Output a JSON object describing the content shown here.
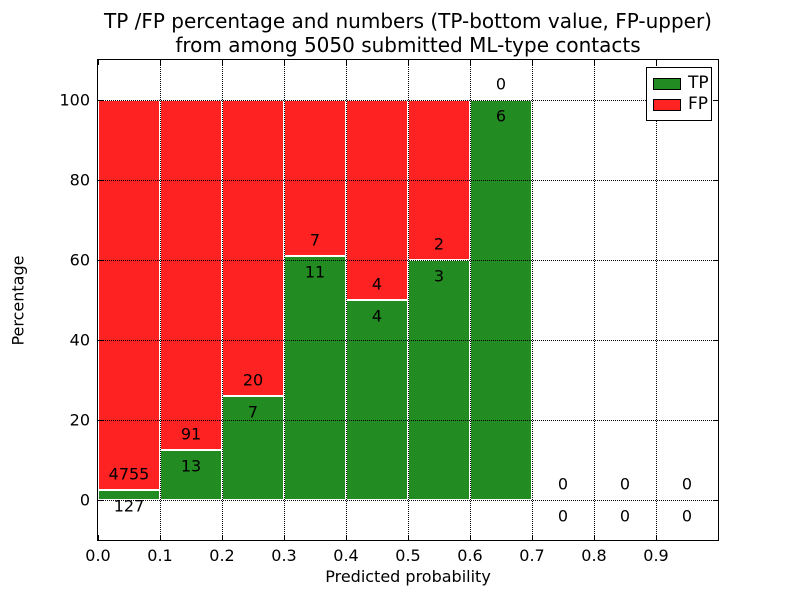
{
  "title": {
    "line1": "TP /FP percentage and numbers (TP-bottom value, FP-upper)",
    "line2": "from among 5050 submitted ML-type contacts"
  },
  "legend": {
    "items": [
      {
        "id": "tp",
        "label": "TP",
        "color": "#228b22"
      },
      {
        "id": "fp",
        "label": "FP",
        "color": "#ff2222"
      }
    ]
  },
  "chart_data": {
    "type": "bar",
    "stacked": true,
    "title": "TP /FP percentage and numbers (TP-bottom value, FP-upper) from among 5050 submitted ML-type contacts",
    "xlabel": "Predicted probability",
    "ylabel": "Percentage",
    "xlim": [
      0.0,
      1.0
    ],
    "ylim": [
      -10,
      110
    ],
    "grid": true,
    "legend_position": "upper right",
    "x_ticks": [
      {
        "v": 0.0,
        "label": "0.0"
      },
      {
        "v": 0.1,
        "label": "0.1"
      },
      {
        "v": 0.2,
        "label": "0.2"
      },
      {
        "v": 0.3,
        "label": "0.3"
      },
      {
        "v": 0.4,
        "label": "0.4"
      },
      {
        "v": 0.5,
        "label": "0.5"
      },
      {
        "v": 0.6,
        "label": "0.6"
      },
      {
        "v": 0.7,
        "label": "0.7"
      },
      {
        "v": 0.8,
        "label": "0.8"
      },
      {
        "v": 0.9,
        "label": "0.9"
      }
    ],
    "y_ticks": [
      {
        "v": 0,
        "label": "0"
      },
      {
        "v": 20,
        "label": "20"
      },
      {
        "v": 40,
        "label": "40"
      },
      {
        "v": 60,
        "label": "60"
      },
      {
        "v": 80,
        "label": "80"
      },
      {
        "v": 100,
        "label": "100"
      }
    ],
    "colors": {
      "tp": "#228b22",
      "fp": "#ff2222"
    },
    "bins": [
      {
        "range": [
          0.0,
          0.1
        ],
        "tp_count": 127,
        "fp_count": 4755,
        "tp_pct": 2.6,
        "fp_pct": 97.4
      },
      {
        "range": [
          0.1,
          0.2
        ],
        "tp_count": 13,
        "fp_count": 91,
        "tp_pct": 12.5,
        "fp_pct": 87.5
      },
      {
        "range": [
          0.2,
          0.3
        ],
        "tp_count": 7,
        "fp_count": 20,
        "tp_pct": 25.9,
        "fp_pct": 74.1
      },
      {
        "range": [
          0.3,
          0.4
        ],
        "tp_count": 11,
        "fp_count": 7,
        "tp_pct": 61.1,
        "fp_pct": 38.9
      },
      {
        "range": [
          0.4,
          0.5
        ],
        "tp_count": 4,
        "fp_count": 4,
        "tp_pct": 50.0,
        "fp_pct": 50.0
      },
      {
        "range": [
          0.5,
          0.6
        ],
        "tp_count": 3,
        "fp_count": 2,
        "tp_pct": 60.0,
        "fp_pct": 40.0
      },
      {
        "range": [
          0.6,
          0.7
        ],
        "tp_count": 6,
        "fp_count": 0,
        "tp_pct": 100.0,
        "fp_pct": 0.0
      },
      {
        "range": [
          0.7,
          0.8
        ],
        "tp_count": 0,
        "fp_count": 0,
        "tp_pct": null,
        "fp_pct": null
      },
      {
        "range": [
          0.8,
          0.9
        ],
        "tp_count": 0,
        "fp_count": 0,
        "tp_pct": null,
        "fp_pct": null
      },
      {
        "range": [
          0.9,
          1.0
        ],
        "tp_count": 0,
        "fp_count": 0,
        "tp_pct": null,
        "fp_pct": null
      }
    ]
  }
}
